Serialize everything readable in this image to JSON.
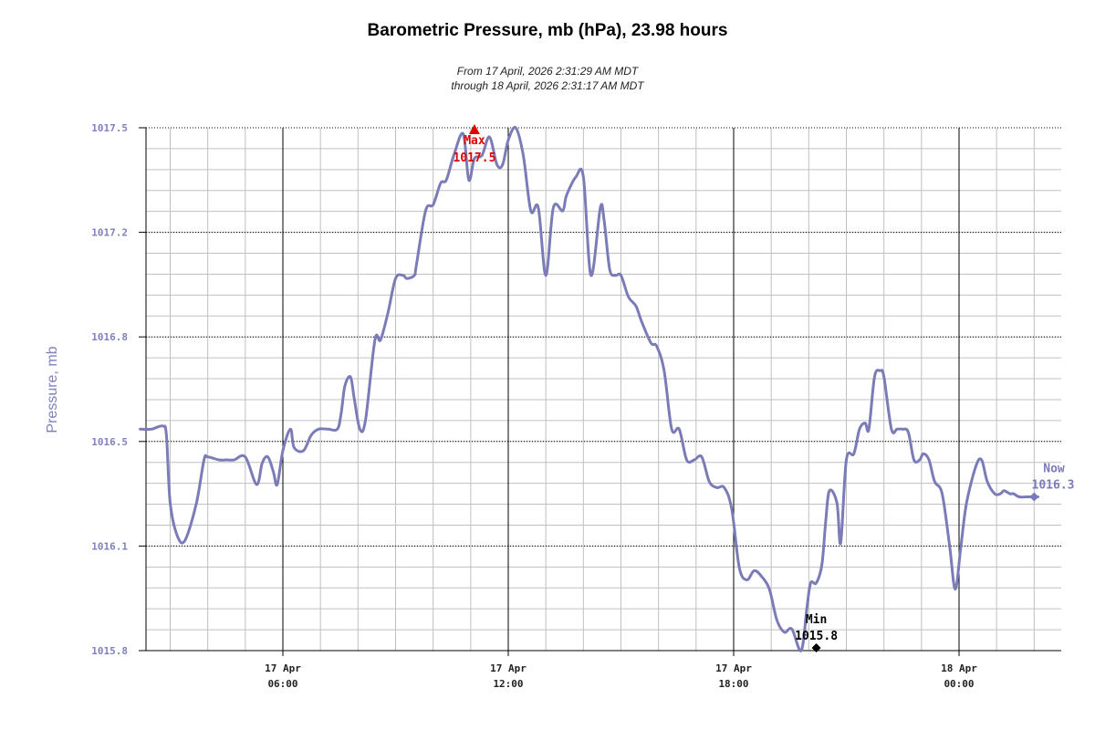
{
  "chart_data": {
    "type": "line",
    "title": "Barometric Pressure, mb (hPa), 23.98 hours",
    "subtitle_line1": "From 17 April, 2026 2:31:29 AM MDT",
    "subtitle_line2": "through 18 April, 2026 2:31:17 AM MDT",
    "ylabel": "Pressure, mb",
    "ylim": [
      1015.8,
      1017.5
    ],
    "y_ticks": [
      "1017.5",
      "1017.2",
      "1016.8",
      "1016.5",
      "1016.1",
      "1015.8"
    ],
    "x_ticks": [
      {
        "date": "17 Apr",
        "time": "06:00"
      },
      {
        "date": "17 Apr",
        "time": "12:00"
      },
      {
        "date": "17 Apr",
        "time": "18:00"
      },
      {
        "date": "18 Apr",
        "time": "00:00"
      }
    ],
    "grid": true,
    "colors": {
      "line": "#7b7bb8",
      "max": "#e00000",
      "min": "#000000",
      "now": "#7b7bb8",
      "axis_text": "#8080c0"
    },
    "series": [
      {
        "x_hours": [
          2.2,
          2.5,
          2.8,
          2.9,
          3.0,
          3.2,
          3.4,
          3.7,
          3.9,
          4.0,
          4.3,
          4.5,
          4.7,
          5.0,
          5.3,
          5.45,
          5.6,
          5.75,
          5.85,
          6.0,
          6.2,
          6.3,
          6.55,
          6.75,
          6.95,
          7.2,
          7.45,
          7.55,
          7.65,
          7.8,
          7.9,
          8.05,
          8.2,
          8.45,
          8.6,
          8.8,
          9.0,
          9.2,
          9.3,
          9.5,
          9.55,
          9.8,
          10.0,
          10.2,
          10.35,
          10.55,
          10.8,
          10.95,
          11.1,
          11.3,
          11.5,
          11.7,
          11.85,
          12.0,
          12.2,
          12.4,
          12.6,
          12.8,
          13.0,
          13.2,
          13.45,
          13.55,
          13.8,
          14.0,
          14.2,
          14.45,
          14.55,
          14.7,
          14.85,
          15.0,
          15.2,
          15.4,
          15.55,
          15.8,
          15.95,
          16.15,
          16.35,
          16.55,
          16.75,
          16.95,
          17.15,
          17.35,
          17.55,
          17.75,
          17.95,
          18.15,
          18.35,
          18.55,
          18.75,
          18.95,
          19.15,
          19.35,
          19.55,
          19.8,
          19.95,
          20.05,
          20.2,
          20.35,
          20.45,
          20.55,
          20.75,
          20.85,
          21.0,
          21.2,
          21.35,
          21.5,
          21.6,
          21.75,
          21.9,
          22.0,
          22.2,
          22.35,
          22.5,
          22.65,
          22.8,
          22.95,
          23.05,
          23.2,
          23.35,
          23.55,
          23.75,
          23.9,
          24.05,
          24.2,
          24.45,
          24.6,
          24.75,
          24.95,
          25.1,
          25.2,
          25.35,
          25.45,
          25.6,
          25.8,
          26.0,
          26.1
        ],
        "values": [
          1016.52,
          1016.52,
          1016.53,
          1016.5,
          1016.28,
          1016.17,
          1016.16,
          1016.28,
          1016.42,
          1016.43,
          1016.42,
          1016.42,
          1016.42,
          1016.43,
          1016.34,
          1016.41,
          1016.43,
          1016.38,
          1016.34,
          1016.45,
          1016.52,
          1016.46,
          1016.45,
          1016.5,
          1016.52,
          1016.52,
          1016.52,
          1016.57,
          1016.66,
          1016.69,
          1016.62,
          1016.52,
          1016.55,
          1016.81,
          1016.81,
          1016.9,
          1017.01,
          1017.02,
          1017.01,
          1017.02,
          1017.05,
          1017.23,
          1017.25,
          1017.32,
          1017.33,
          1017.41,
          1017.48,
          1017.33,
          1017.4,
          1017.41,
          1017.47,
          1017.38,
          1017.38,
          1017.46,
          1017.5,
          1017.41,
          1017.23,
          1017.24,
          1017.02,
          1017.24,
          1017.23,
          1017.28,
          1017.34,
          1017.34,
          1017.02,
          1017.24,
          1017.2,
          1017.04,
          1017.02,
          1017.02,
          1016.95,
          1016.92,
          1016.87,
          1016.8,
          1016.79,
          1016.71,
          1016.52,
          1016.52,
          1016.42,
          1016.42,
          1016.43,
          1016.35,
          1016.33,
          1016.33,
          1016.26,
          1016.07,
          1016.03,
          1016.06,
          1016.04,
          1016.0,
          1015.9,
          1015.86,
          1015.87,
          1015.8,
          1015.94,
          1016.02,
          1016.02,
          1016.08,
          1016.22,
          1016.32,
          1016.28,
          1016.15,
          1016.42,
          1016.44,
          1016.52,
          1016.54,
          1016.52,
          1016.69,
          1016.71,
          1016.69,
          1016.52,
          1016.52,
          1016.52,
          1016.51,
          1016.42,
          1016.42,
          1016.44,
          1016.42,
          1016.35,
          1016.31,
          1016.14,
          1016.0,
          1016.14,
          1016.28,
          1016.4,
          1016.42,
          1016.35,
          1016.31,
          1016.31,
          1016.32,
          1016.31,
          1016.31,
          1016.3,
          1016.3,
          1016.3,
          1016.3
        ]
      }
    ],
    "annotations": {
      "max": {
        "label": "Max",
        "value": "1017.5",
        "x_hour": 11.1,
        "y": 1017.5
      },
      "min": {
        "label": "Min",
        "value": "1015.8",
        "x_hour": 20.2,
        "y": 1015.8
      },
      "now": {
        "label": "Now",
        "value": "1016.3",
        "x_hour": 26.0,
        "y": 1016.3
      }
    }
  }
}
